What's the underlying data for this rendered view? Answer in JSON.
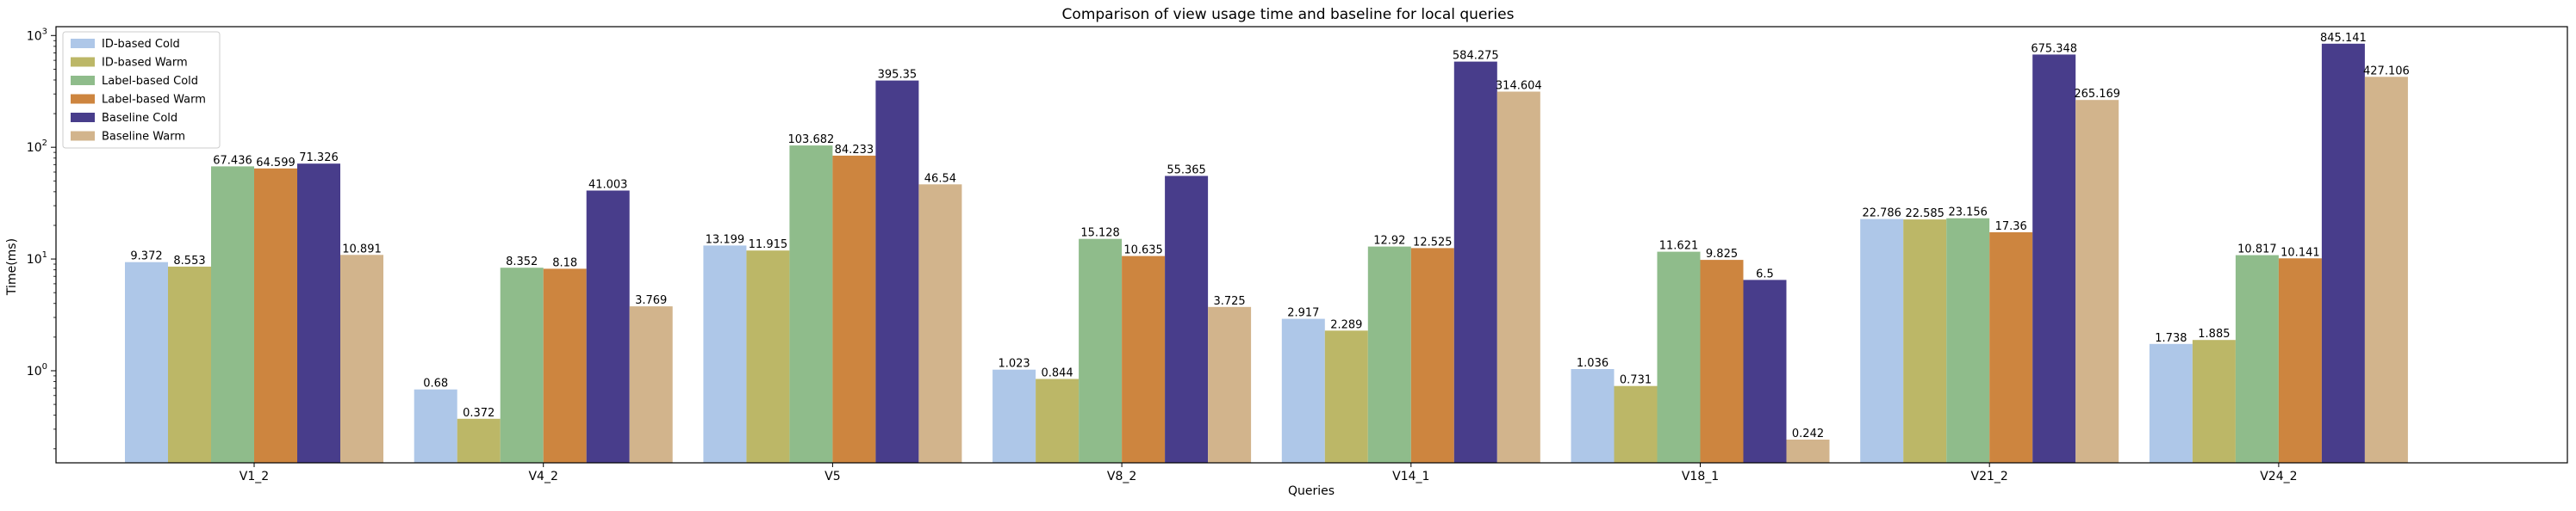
{
  "chart_data": {
    "type": "bar",
    "title": "Comparison of view usage time and baseline for local queries",
    "xlabel": "Queries",
    "ylabel": "Time(ms)",
    "yscale": "log",
    "ylim": [
      0.15,
      1200
    ],
    "y_ticks": [
      {
        "value": 1,
        "base": "10",
        "exp": "0"
      },
      {
        "value": 10,
        "base": "10",
        "exp": "1"
      },
      {
        "value": 100,
        "base": "10",
        "exp": "2"
      },
      {
        "value": 1000,
        "base": "10",
        "exp": "3"
      }
    ],
    "legend_position": "top-left",
    "grid": false,
    "categories": [
      "V1_2",
      "V4_2",
      "V5",
      "V8_2",
      "V14_1",
      "V18_1",
      "V21_2",
      "V24_2"
    ],
    "series": [
      {
        "name": "ID-based Cold",
        "color": "#aec7e8",
        "values": [
          9.372,
          0.68,
          13.199,
          1.023,
          2.917,
          1.036,
          22.786,
          1.738
        ],
        "labels": [
          "9.372",
          "0.68",
          "13.199",
          "1.023",
          "2.917",
          "1.036",
          "22.786",
          "1.738"
        ]
      },
      {
        "name": "ID-based Warm",
        "color": "#bcb767",
        "values": [
          8.553,
          0.372,
          11.915,
          0.844,
          2.289,
          0.731,
          22.585,
          1.885
        ],
        "labels": [
          "8.553",
          "0.372",
          "11.915",
          "0.844",
          "2.289",
          "0.731",
          "22.585",
          "1.885"
        ]
      },
      {
        "name": "Label-based Cold",
        "color": "#8fbc8b",
        "values": [
          67.436,
          8.352,
          103.682,
          15.128,
          12.92,
          11.621,
          23.156,
          10.817
        ],
        "labels": [
          "67.436",
          "8.352",
          "103.682",
          "15.128",
          "12.92",
          "11.621",
          "23.156",
          "10.817"
        ]
      },
      {
        "name": "Label-based Warm",
        "color": "#cd853f",
        "values": [
          64.599,
          8.18,
          84.233,
          10.635,
          12.525,
          9.825,
          17.36,
          10.141
        ],
        "labels": [
          "64.599",
          "8.18",
          "84.233",
          "10.635",
          "12.525",
          "9.825",
          "17.36",
          "10.141"
        ]
      },
      {
        "name": "Baseline Cold",
        "color": "#483d8b",
        "values": [
          71.326,
          41.003,
          395.35,
          55.365,
          584.275,
          6.5,
          675.348,
          845.141
        ],
        "labels": [
          "71.326",
          "41.003",
          "395.35",
          "55.365",
          "584.275",
          "6.5",
          "675.348",
          "845.141"
        ]
      },
      {
        "name": "Baseline Warm",
        "color": "#d2b48c",
        "values": [
          10.891,
          3.769,
          46.54,
          3.725,
          314.604,
          0.242,
          265.169,
          427.106
        ],
        "labels": [
          "10.891",
          "3.769",
          "46.54",
          "3.725",
          "314.604",
          "0.242",
          "265.169",
          "427.106"
        ]
      }
    ]
  }
}
